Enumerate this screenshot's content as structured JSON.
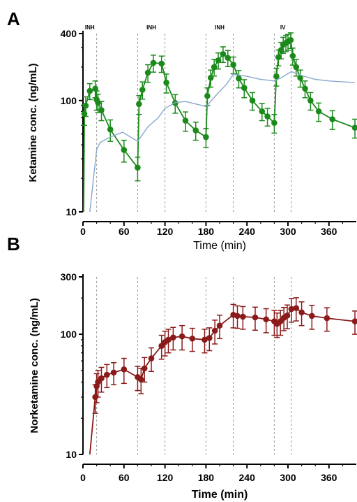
{
  "chart_data": [
    {
      "panel": "A",
      "type": "line",
      "xlabel": "Time (min)",
      "ylabel": "Ketamine conc. (ng/mL)",
      "yscale": "log",
      "ylim": [
        10,
        400
      ],
      "xlim": [
        0,
        400
      ],
      "xticks": [
        0,
        60,
        120,
        180,
        240,
        300,
        360
      ],
      "yticks": [
        {
          "value": 10,
          "label": "10"
        },
        {
          "value": 100,
          "label": "100"
        },
        {
          "value": 400,
          "label": "400"
        }
      ],
      "dose_markers": [
        {
          "label": "INH",
          "start": 0,
          "end": 20
        },
        {
          "label": "INH",
          "start": 80,
          "end": 120
        },
        {
          "label": "INH",
          "start": 180,
          "end": 220
        },
        {
          "label": "IV",
          "start": 280,
          "end": 305
        }
      ],
      "series": [
        {
          "kind": "observed",
          "color": "#1b8a1b",
          "points": [
            {
              "x": 2,
              "y": 76,
              "err": 16
            },
            {
              "x": 4,
              "y": 90,
              "err": 18
            },
            {
              "x": 10,
              "y": 122,
              "err": 20
            },
            {
              "x": 18,
              "y": 128,
              "err": 22
            },
            {
              "x": 20,
              "y": 102,
              "err": 20
            },
            {
              "x": 22,
              "y": 96,
              "err": 18
            },
            {
              "x": 27,
              "y": 82,
              "err": 16
            },
            {
              "x": 40,
              "y": 55,
              "err": 12
            },
            {
              "x": 60,
              "y": 36,
              "err": 8
            },
            {
              "x": 80,
              "y": 25,
              "err": 6
            },
            {
              "x": 82,
              "y": 93,
              "err": 18
            },
            {
              "x": 87,
              "y": 125,
              "err": 22
            },
            {
              "x": 95,
              "y": 178,
              "err": 32
            },
            {
              "x": 103,
              "y": 218,
              "err": 38
            },
            {
              "x": 115,
              "y": 215,
              "err": 36
            },
            {
              "x": 122,
              "y": 145,
              "err": 28
            },
            {
              "x": 135,
              "y": 95,
              "err": 18
            },
            {
              "x": 150,
              "y": 66,
              "err": 13
            },
            {
              "x": 165,
              "y": 54,
              "err": 10
            },
            {
              "x": 180,
              "y": 47,
              "err": 9
            },
            {
              "x": 182,
              "y": 110,
              "err": 20
            },
            {
              "x": 187,
              "y": 160,
              "err": 28
            },
            {
              "x": 192,
              "y": 200,
              "err": 34
            },
            {
              "x": 198,
              "y": 230,
              "err": 38
            },
            {
              "x": 205,
              "y": 262,
              "err": 42
            },
            {
              "x": 212,
              "y": 242,
              "err": 40
            },
            {
              "x": 220,
              "y": 210,
              "err": 36
            },
            {
              "x": 228,
              "y": 158,
              "err": 28
            },
            {
              "x": 236,
              "y": 130,
              "err": 24
            },
            {
              "x": 248,
              "y": 100,
              "err": 18
            },
            {
              "x": 262,
              "y": 80,
              "err": 14
            },
            {
              "x": 270,
              "y": 72,
              "err": 13
            },
            {
              "x": 280,
              "y": 63,
              "err": 12
            },
            {
              "x": 283,
              "y": 165,
              "err": 30
            },
            {
              "x": 286,
              "y": 245,
              "err": 40
            },
            {
              "x": 290,
              "y": 285,
              "err": 48
            },
            {
              "x": 293,
              "y": 318,
              "err": 52
            },
            {
              "x": 297,
              "y": 330,
              "err": 55
            },
            {
              "x": 300,
              "y": 338,
              "err": 55
            },
            {
              "x": 304,
              "y": 350,
              "err": 56
            },
            {
              "x": 307,
              "y": 252,
              "err": 44
            },
            {
              "x": 312,
              "y": 200,
              "err": 34
            },
            {
              "x": 318,
              "y": 160,
              "err": 28
            },
            {
              "x": 325,
              "y": 128,
              "err": 22
            },
            {
              "x": 333,
              "y": 100,
              "err": 18
            },
            {
              "x": 345,
              "y": 80,
              "err": 15
            },
            {
              "x": 365,
              "y": 68,
              "err": 13
            },
            {
              "x": 398,
              "y": 57,
              "err": 11
            }
          ]
        },
        {
          "kind": "model",
          "color": "#88a8cc",
          "points": [
            {
              "x": 10,
              "y": 10
            },
            {
              "x": 20,
              "y": 36
            },
            {
              "x": 25,
              "y": 42
            },
            {
              "x": 40,
              "y": 47
            },
            {
              "x": 58,
              "y": 52
            },
            {
              "x": 80,
              "y": 43
            },
            {
              "x": 95,
              "y": 58
            },
            {
              "x": 110,
              "y": 70
            },
            {
              "x": 120,
              "y": 85
            },
            {
              "x": 135,
              "y": 96
            },
            {
              "x": 150,
              "y": 98
            },
            {
              "x": 175,
              "y": 90
            },
            {
              "x": 180,
              "y": 88
            },
            {
              "x": 195,
              "y": 112
            },
            {
              "x": 210,
              "y": 140
            },
            {
              "x": 220,
              "y": 172
            },
            {
              "x": 240,
              "y": 165
            },
            {
              "x": 260,
              "y": 155
            },
            {
              "x": 280,
              "y": 150
            },
            {
              "x": 290,
              "y": 160
            },
            {
              "x": 305,
              "y": 182
            },
            {
              "x": 320,
              "y": 168
            },
            {
              "x": 340,
              "y": 155
            },
            {
              "x": 360,
              "y": 150
            },
            {
              "x": 398,
              "y": 145
            }
          ]
        }
      ]
    },
    {
      "panel": "B",
      "type": "line",
      "xlabel": "Time (min)",
      "ylabel": "Norketamine conc. (ng/mL)",
      "yscale": "log",
      "ylim": [
        10,
        300
      ],
      "xlim": [
        0,
        400
      ],
      "xticks": [
        0,
        60,
        120,
        180,
        240,
        300,
        360
      ],
      "yticks": [
        {
          "value": 10,
          "label": "10"
        },
        {
          "value": 100,
          "label": "100"
        },
        {
          "value": 300,
          "label": "300"
        }
      ],
      "dose_lines": [
        0,
        20,
        80,
        120,
        180,
        220,
        280,
        305
      ],
      "series": [
        {
          "kind": "observed",
          "color": "#8b1a1a",
          "points": [
            {
              "x": 10,
              "y": 10,
              "err": 0,
              "marker": false
            },
            {
              "x": 18,
              "y": 30,
              "err": 8
            },
            {
              "x": 20,
              "y": 37,
              "err": 10
            },
            {
              "x": 22,
              "y": 40,
              "err": 10
            },
            {
              "x": 27,
              "y": 43,
              "err": 10
            },
            {
              "x": 35,
              "y": 46,
              "err": 10
            },
            {
              "x": 45,
              "y": 48,
              "err": 10
            },
            {
              "x": 60,
              "y": 51,
              "err": 12
            },
            {
              "x": 80,
              "y": 44,
              "err": 10
            },
            {
              "x": 85,
              "y": 42,
              "err": 10
            },
            {
              "x": 90,
              "y": 52,
              "err": 12
            },
            {
              "x": 100,
              "y": 63,
              "err": 14
            },
            {
              "x": 115,
              "y": 80,
              "err": 18
            },
            {
              "x": 120,
              "y": 86,
              "err": 20
            },
            {
              "x": 125,
              "y": 90,
              "err": 20
            },
            {
              "x": 132,
              "y": 94,
              "err": 20
            },
            {
              "x": 145,
              "y": 96,
              "err": 22
            },
            {
              "x": 160,
              "y": 92,
              "err": 20
            },
            {
              "x": 178,
              "y": 90,
              "err": 20
            },
            {
              "x": 185,
              "y": 93,
              "err": 20
            },
            {
              "x": 193,
              "y": 107,
              "err": 24
            },
            {
              "x": 200,
              "y": 118,
              "err": 26
            },
            {
              "x": 220,
              "y": 145,
              "err": 32
            },
            {
              "x": 226,
              "y": 142,
              "err": 30
            },
            {
              "x": 234,
              "y": 140,
              "err": 30
            },
            {
              "x": 252,
              "y": 138,
              "err": 30
            },
            {
              "x": 268,
              "y": 133,
              "err": 30
            },
            {
              "x": 280,
              "y": 128,
              "err": 30
            },
            {
              "x": 284,
              "y": 122,
              "err": 28
            },
            {
              "x": 289,
              "y": 128,
              "err": 30
            },
            {
              "x": 294,
              "y": 137,
              "err": 30
            },
            {
              "x": 299,
              "y": 143,
              "err": 32
            },
            {
              "x": 305,
              "y": 162,
              "err": 36
            },
            {
              "x": 312,
              "y": 165,
              "err": 36
            },
            {
              "x": 320,
              "y": 152,
              "err": 34
            },
            {
              "x": 335,
              "y": 142,
              "err": 32
            },
            {
              "x": 357,
              "y": 136,
              "err": 30
            },
            {
              "x": 398,
              "y": 128,
              "err": 28
            }
          ]
        }
      ]
    }
  ]
}
